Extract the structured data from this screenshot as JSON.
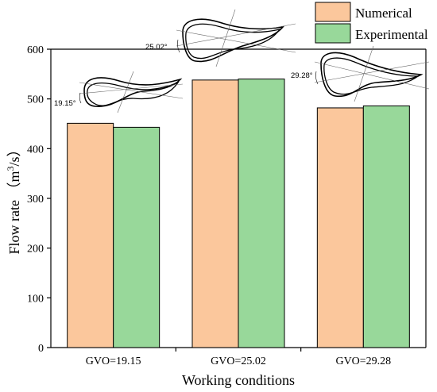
{
  "chart_data": {
    "type": "bar",
    "categories": [
      "GVO=19.15",
      "GVO=25.02",
      "GVO=29.28"
    ],
    "series": [
      {
        "name": "Numerical",
        "values": [
          451,
          538,
          482
        ],
        "color": "#FBC79C"
      },
      {
        "name": "Experimental",
        "values": [
          443,
          540,
          486
        ],
        "color": "#98D89A"
      }
    ],
    "title": "",
    "xlabel": "Working conditions",
    "ylabel": "Flow rate （m³/s）",
    "ylabel_parts": {
      "prefix": "Flow rate （m",
      "superscript": "3",
      "suffix": "/s）"
    },
    "ylim": [
      0,
      600
    ],
    "yticks": [
      0,
      100,
      200,
      300,
      400,
      500,
      600
    ],
    "grid": false,
    "legend_position": "top-right",
    "annotations": [
      {
        "category": "GVO=19.15",
        "text": "19.15°"
      },
      {
        "category": "GVO=25.02",
        "text": "25.02°"
      },
      {
        "category": "GVO=29.28",
        "text": "29.28°"
      }
    ]
  }
}
